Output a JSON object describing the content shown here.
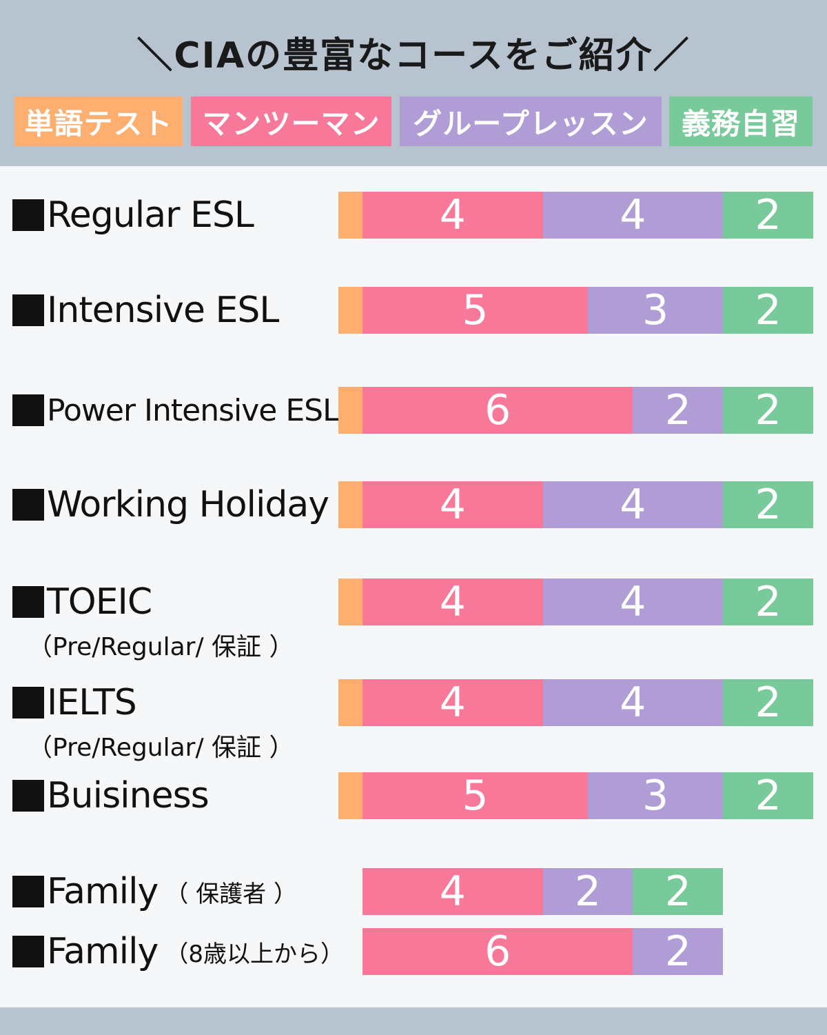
{
  "header": {
    "title": "＼CIAの豊富なコースをご紹介／"
  },
  "colors": {
    "vocab_test": "#feae6e",
    "one_on_one": "#f87899",
    "group": "#b09dd6",
    "self_study": "#79ca9a"
  },
  "legend": [
    {
      "label": "単語テスト",
      "key": "vocab_test"
    },
    {
      "label": "マンツーマン",
      "key": "one_on_one"
    },
    {
      "label": "グループレッスン",
      "key": "group"
    },
    {
      "label": "義務自習",
      "key": "self_study"
    }
  ],
  "chart_data": {
    "type": "bar",
    "orientation": "horizontal",
    "stacked": true,
    "series_order": [
      "vocab_test",
      "one_on_one",
      "group",
      "self_study"
    ],
    "rows": [
      {
        "label": "Regular ESL",
        "note": "",
        "sub": "",
        "values": {
          "vocab_test": 1,
          "one_on_one": 4,
          "group": 4,
          "self_study": 2
        },
        "value_labels": {
          "one_on_one": "4",
          "group": "4",
          "self_study": "2"
        }
      },
      {
        "label": "Intensive ESL",
        "note": "",
        "sub": "",
        "values": {
          "vocab_test": 1,
          "one_on_one": 5,
          "group": 3,
          "self_study": 2
        },
        "value_labels": {
          "one_on_one": "5",
          "group": "3",
          "self_study": "2"
        }
      },
      {
        "label": "Power Intensive ESL",
        "note": "",
        "sub": "",
        "values": {
          "vocab_test": 1,
          "one_on_one": 6,
          "group": 2,
          "self_study": 2
        },
        "value_labels": {
          "one_on_one": "6",
          "group": "2",
          "self_study": "2"
        }
      },
      {
        "label": "Working Holiday",
        "note": "",
        "sub": "",
        "values": {
          "vocab_test": 1,
          "one_on_one": 4,
          "group": 4,
          "self_study": 2
        },
        "value_labels": {
          "one_on_one": "4",
          "group": "4",
          "self_study": "2"
        }
      },
      {
        "label": "TOEIC",
        "note": "",
        "sub": "（Pre/Regular/ 保証 ）",
        "values": {
          "vocab_test": 1,
          "one_on_one": 4,
          "group": 4,
          "self_study": 2
        },
        "value_labels": {
          "one_on_one": "4",
          "group": "4",
          "self_study": "2"
        }
      },
      {
        "label": "IELTS",
        "note": "",
        "sub": "（Pre/Regular/ 保証 ）",
        "values": {
          "vocab_test": 1,
          "one_on_one": 4,
          "group": 4,
          "self_study": 2
        },
        "value_labels": {
          "one_on_one": "4",
          "group": "4",
          "self_study": "2"
        }
      },
      {
        "label": "Buisiness",
        "note": "",
        "sub": "",
        "values": {
          "vocab_test": 1,
          "one_on_one": 5,
          "group": 3,
          "self_study": 2
        },
        "value_labels": {
          "one_on_one": "5",
          "group": "3",
          "self_study": "2"
        }
      },
      {
        "label": "Family",
        "note": "（ 保護者 ）",
        "sub": "",
        "values": {
          "vocab_test": 0,
          "one_on_one": 4,
          "group": 2,
          "self_study": 2
        },
        "value_labels": {
          "one_on_one": "4",
          "group": "2",
          "self_study": "2"
        }
      },
      {
        "label": "Family",
        "note": "（8歳以上から）",
        "sub": "",
        "values": {
          "vocab_test": 0,
          "one_on_one": 6,
          "group": 2,
          "self_study": 0
        },
        "value_labels": {
          "one_on_one": "6",
          "group": "2"
        }
      }
    ]
  }
}
